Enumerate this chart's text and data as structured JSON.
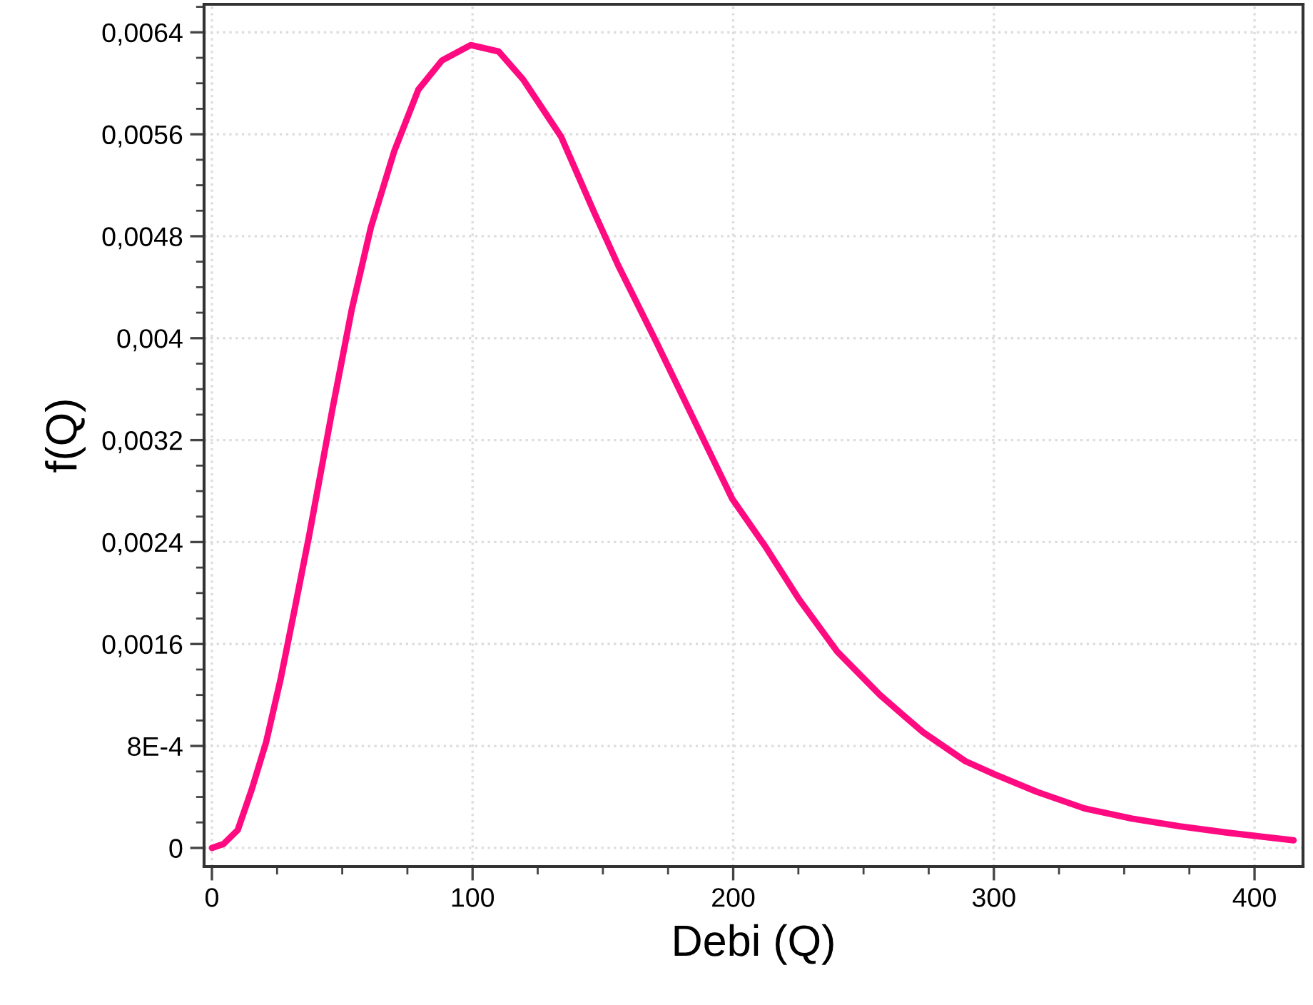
{
  "chart_data": {
    "type": "line",
    "xlabel": "Debi (Q)",
    "ylabel": "f(Q)",
    "series": [
      {
        "color": "#ff0a80",
        "x": [
          0,
          4.4,
          9.9,
          15.3,
          20.8,
          26.3,
          31.8,
          37.2,
          46.3,
          53.7,
          61,
          70,
          79.2,
          88.3,
          99.3,
          110,
          119.4,
          134,
          146.8,
          155.9,
          170.5,
          199.6,
          212.5,
          225.3,
          239.9,
          256.3,
          272.7,
          289.1,
          300,
          316.5,
          334.8,
          353,
          371.3,
          389.5,
          415
        ],
        "values": [
          0,
          3e-05,
          0.00014,
          0.00046,
          0.00083,
          0.00132,
          0.00188,
          0.00244,
          0.00345,
          0.00423,
          0.00487,
          0.00547,
          0.00595,
          0.00618,
          0.0063,
          0.00625,
          0.00603,
          0.00558,
          0.00498,
          0.00457,
          0.00397,
          0.00274,
          0.00236,
          0.00195,
          0.00154,
          0.0012,
          0.00091,
          0.00068,
          0.00058,
          0.00044,
          0.00031,
          0.00023,
          0.00017,
          0.00012,
          6e-05
        ]
      }
    ],
    "xlim": [
      -3,
      418.6
    ],
    "ylim": [
      -0.000146,
      0.00662
    ],
    "xticks": [
      0,
      100,
      200,
      300,
      400
    ],
    "yticks": [
      {
        "value": 0,
        "label": "0"
      },
      {
        "value": 0.0008,
        "label": "8E-4"
      },
      {
        "value": 0.0016,
        "label": "0,0016"
      },
      {
        "value": 0.0024,
        "label": "0,0024"
      },
      {
        "value": 0.0032,
        "label": "0,0032"
      },
      {
        "value": 0.004,
        "label": "0,004"
      },
      {
        "value": 0.0048,
        "label": "0,0048"
      },
      {
        "value": 0.0056,
        "label": "0,0056"
      },
      {
        "value": 0.0064,
        "label": "0,0064"
      }
    ],
    "grid": true,
    "marker": "none",
    "line_style": "solid"
  }
}
